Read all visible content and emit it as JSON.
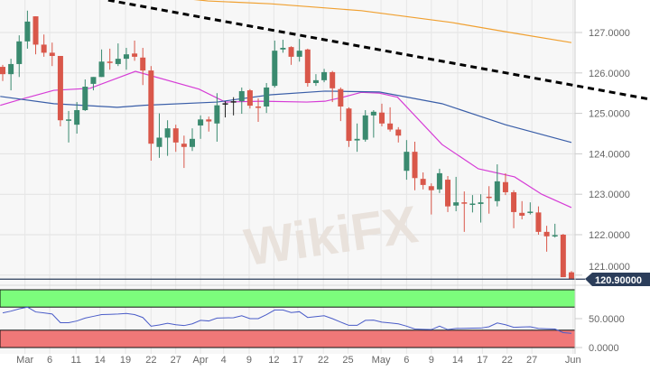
{
  "chart_data": {
    "type": "candlestick",
    "price_axis": {
      "ticks": [
        "127.0000",
        "126.0000",
        "125.0000",
        "124.0000",
        "123.0000",
        "122.0000",
        "121.0000"
      ],
      "tick_values": [
        127,
        126,
        125,
        124,
        123,
        122,
        121
      ],
      "range": [
        120.75,
        127.8
      ]
    },
    "last_price": {
      "label": "120.90000",
      "value": 120.9
    },
    "x_ticks": [
      "Mar",
      "6",
      "11",
      "14",
      "19",
      "22",
      "27",
      "Apr",
      "4",
      "9",
      "12",
      "17",
      "22",
      "25",
      "May",
      "6",
      "9",
      "14",
      "17",
      "22",
      "27",
      "Jun"
    ],
    "candles": [
      [
        126.15,
        126.2,
        125.8,
        125.97
      ],
      [
        125.97,
        126.35,
        125.57,
        126.22
      ],
      [
        126.22,
        126.93,
        125.9,
        126.78
      ],
      [
        126.78,
        127.54,
        126.6,
        127.27
      ],
      [
        127.4,
        127.4,
        126.46,
        126.7
      ],
      [
        126.7,
        126.95,
        126.4,
        126.5
      ],
      [
        126.5,
        126.75,
        126.17,
        126.42
      ],
      [
        126.42,
        126.42,
        124.68,
        124.83
      ],
      [
        124.83,
        125.06,
        124.28,
        124.85
      ],
      [
        124.72,
        125.28,
        124.5,
        125.08
      ],
      [
        125.08,
        125.84,
        125.06,
        125.66
      ],
      [
        125.73,
        125.9,
        125.57,
        125.9
      ],
      [
        125.9,
        126.58,
        125.9,
        126.28
      ],
      [
        126.28,
        126.6,
        126.08,
        126.26
      ],
      [
        126.22,
        126.73,
        126.17,
        126.35
      ],
      [
        126.35,
        126.62,
        126.08,
        126.46
      ],
      [
        126.48,
        126.8,
        126.3,
        126.4
      ],
      [
        126.38,
        126.62,
        125.7,
        126.06
      ],
      [
        126.06,
        126.17,
        123.83,
        124.25
      ],
      [
        124.17,
        125.0,
        123.9,
        124.4
      ],
      [
        124.4,
        124.83,
        123.95,
        124.63
      ],
      [
        124.63,
        124.72,
        124.05,
        124.28
      ],
      [
        124.25,
        124.45,
        123.65,
        124.17
      ],
      [
        124.17,
        124.63,
        124.07,
        124.37
      ],
      [
        124.7,
        124.95,
        124.37,
        124.85
      ],
      [
        124.85,
        124.92,
        124.55,
        124.8
      ],
      [
        124.75,
        125.5,
        124.3,
        125.2
      ],
      [
        125.25,
        125.3,
        124.9,
        125.25
      ],
      [
        125.3,
        125.4,
        124.95,
        125.3
      ],
      [
        125.3,
        125.64,
        124.99,
        125.55
      ],
      [
        125.57,
        125.6,
        125.12,
        125.19
      ],
      [
        125.17,
        125.37,
        124.79,
        125.15
      ],
      [
        125.17,
        125.75,
        125.01,
        125.64
      ],
      [
        125.68,
        126.8,
        125.64,
        126.55
      ],
      [
        126.58,
        126.82,
        126.5,
        126.62
      ],
      [
        126.64,
        126.66,
        126.2,
        126.4
      ],
      [
        126.4,
        126.84,
        126.28,
        126.55
      ],
      [
        126.58,
        126.6,
        125.66,
        125.75
      ],
      [
        125.75,
        125.97,
        125.68,
        125.82
      ],
      [
        125.82,
        126.1,
        125.77,
        126.02
      ],
      [
        126.02,
        126.05,
        125.28,
        125.62
      ],
      [
        125.6,
        125.64,
        124.81,
        125.17
      ],
      [
        125.12,
        125.15,
        124.17,
        124.32
      ],
      [
        124.33,
        124.75,
        124.05,
        124.37
      ],
      [
        124.35,
        125.08,
        124.3,
        124.95
      ],
      [
        124.95,
        125.08,
        124.4,
        125.04
      ],
      [
        125.02,
        125.24,
        124.68,
        124.75
      ],
      [
        124.75,
        125.15,
        124.55,
        124.6
      ],
      [
        124.6,
        124.66,
        124.28,
        124.45
      ],
      [
        123.58,
        124.34,
        123.36,
        124.05
      ],
      [
        124.05,
        124.3,
        123.1,
        123.4
      ],
      [
        123.38,
        123.54,
        123.12,
        123.23
      ],
      [
        123.2,
        123.27,
        122.5,
        123.1
      ],
      [
        123.12,
        123.63,
        123.03,
        123.52
      ],
      [
        123.36,
        123.45,
        122.56,
        122.7
      ],
      [
        122.72,
        123.43,
        122.58,
        122.8
      ],
      [
        122.8,
        123.07,
        122.07,
        122.78
      ],
      [
        122.74,
        122.98,
        122.55,
        122.77
      ],
      [
        122.76,
        123.0,
        122.3,
        122.8
      ],
      [
        122.94,
        123.2,
        122.52,
        122.92
      ],
      [
        122.83,
        123.74,
        122.7,
        123.32
      ],
      [
        123.3,
        123.52,
        122.98,
        123.05
      ],
      [
        123.05,
        123.1,
        122.16,
        122.56
      ],
      [
        122.54,
        122.83,
        122.38,
        122.47
      ],
      [
        122.55,
        122.8,
        122.5,
        122.57
      ],
      [
        122.55,
        122.7,
        122.0,
        122.07
      ],
      [
        122.07,
        122.22,
        121.58,
        121.96
      ],
      [
        121.97,
        122.27,
        121.93,
        121.99
      ],
      [
        122.0,
        122.02,
        120.95,
        120.95
      ],
      [
        121.07,
        121.1,
        120.9,
        120.9
      ]
    ],
    "moving_averages": [
      {
        "color": "#f0a030",
        "points": [
          [
            21.6,
            127.85
          ],
          [
            24.9,
            127.78
          ],
          [
            32.5,
            127.71
          ],
          [
            43.5,
            127.54
          ],
          [
            54.4,
            127.25
          ],
          [
            61,
            127.02
          ],
          [
            69,
            126.75
          ]
        ]
      },
      {
        "color": "#d63cd6",
        "points": [
          [
            -0.3,
            125.2
          ],
          [
            1.9,
            125.33
          ],
          [
            6.2,
            125.57
          ],
          [
            10.6,
            125.62
          ],
          [
            16.1,
            126.04
          ],
          [
            23.8,
            125.6
          ],
          [
            27,
            125.28
          ],
          [
            31.4,
            125.3
          ],
          [
            36.9,
            125.28
          ],
          [
            39.1,
            125.3
          ],
          [
            41.3,
            125.4
          ],
          [
            43.5,
            125.52
          ],
          [
            45.7,
            125.5
          ],
          [
            47.9,
            125.4
          ],
          [
            53.3,
            124.23
          ],
          [
            57.7,
            123.63
          ],
          [
            62.1,
            123.43
          ],
          [
            65.4,
            123.0
          ],
          [
            69,
            122.67
          ]
        ]
      },
      {
        "color": "#3a5ea8",
        "points": [
          [
            -0.3,
            125.42
          ],
          [
            6.2,
            125.24
          ],
          [
            13.9,
            125.15
          ],
          [
            17.2,
            125.2
          ],
          [
            26,
            125.28
          ],
          [
            32.5,
            125.46
          ],
          [
            39.1,
            125.55
          ],
          [
            45.7,
            125.53
          ],
          [
            53.3,
            125.24
          ],
          [
            61,
            124.72
          ],
          [
            69,
            124.28
          ]
        ]
      }
    ],
    "trendline": {
      "style": "dashed",
      "color": "#000000",
      "points": [
        [
          12.8,
          127.8
        ],
        [
          78.5,
          125.35
        ]
      ]
    },
    "oscillator": {
      "ticks": [
        "50.0000",
        "0.0000"
      ],
      "tick_values": [
        50,
        0
      ],
      "overbought_band": [
        70,
        100
      ],
      "overbought_color": "#7cfc7c",
      "oversold_band": [
        0,
        30
      ],
      "oversold_color": "#f07878",
      "line_color": "#4a5cc8",
      "values": [
        60,
        63,
        67,
        70,
        61.6,
        60,
        58,
        43,
        43,
        46,
        51,
        54,
        57,
        57.5,
        58,
        59,
        57,
        52,
        37,
        39,
        42,
        39.5,
        38,
        41,
        47,
        46,
        51,
        51.3,
        51.6,
        55,
        50,
        50,
        57,
        65,
        65,
        60.5,
        62,
        52,
        53.5,
        55,
        50,
        44,
        38.4,
        38.4,
        47,
        47.4,
        44,
        42.5,
        41,
        37,
        32,
        31.5,
        31,
        37,
        31,
        33,
        33.3,
        33.5,
        33.7,
        36,
        42.6,
        39.5,
        35,
        35.5,
        36,
        33,
        32.5,
        32,
        25.8,
        24.7
      ]
    },
    "colors": {
      "up": "#3a8a6f",
      "down": "#d9574a",
      "price_tag": "#2b3d5a"
    }
  },
  "watermark": "WikiFX"
}
